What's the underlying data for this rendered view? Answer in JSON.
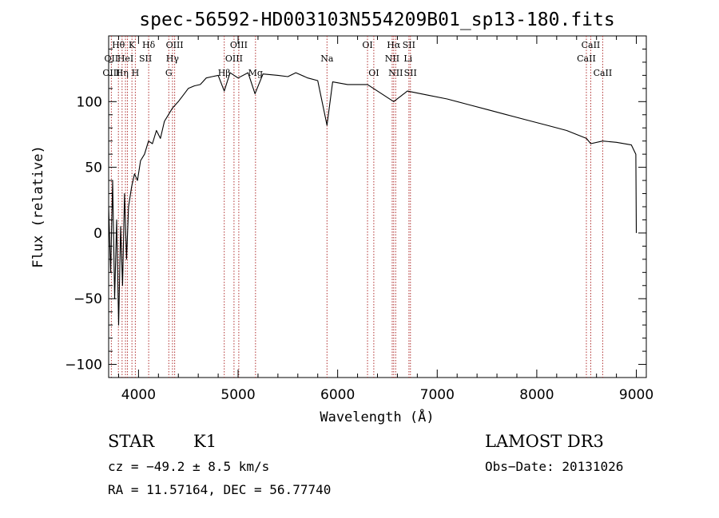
{
  "chart_data": {
    "type": "line",
    "title": "spec-56592-HD003103N554209B01_sp13-180.fits",
    "xlabel": "Wavelength (Å)",
    "ylabel": "Flux (relative)",
    "xlim": [
      3700,
      9100
    ],
    "ylim": [
      -110,
      150
    ],
    "xticks": [
      4000,
      5000,
      6000,
      7000,
      8000,
      9000
    ],
    "xtick_labels": [
      "4000",
      "5000",
      "6000",
      "7000",
      "8000",
      "9000"
    ],
    "yticks": [
      -100,
      -50,
      0,
      50,
      100
    ],
    "ytick_labels": [
      "−100",
      "−50",
      "0",
      "50",
      "100"
    ],
    "series": [
      {
        "name": "spectrum",
        "x": [
          3700,
          3720,
          3740,
          3760,
          3780,
          3800,
          3820,
          3840,
          3860,
          3880,
          3900,
          3930,
          3960,
          3990,
          4020,
          4060,
          4100,
          4140,
          4180,
          4220,
          4260,
          4300,
          4340,
          4400,
          4450,
          4500,
          4560,
          4620,
          4680,
          4740,
          4800,
          4861,
          4920,
          5000,
          5100,
          5170,
          5250,
          5400,
          5500,
          5580,
          5700,
          5800,
          5893,
          5950,
          6100,
          6300,
          6400,
          6563,
          6700,
          6900,
          7100,
          7300,
          7500,
          7700,
          7900,
          8100,
          8300,
          8498,
          8542,
          8662,
          8800,
          8950,
          8995,
          9000
        ],
        "y": [
          20,
          -30,
          40,
          -50,
          10,
          -70,
          5,
          -40,
          30,
          -20,
          20,
          35,
          45,
          40,
          55,
          60,
          70,
          68,
          78,
          72,
          85,
          90,
          95,
          100,
          105,
          110,
          112,
          113,
          118,
          119,
          120,
          108,
          122,
          118,
          122,
          106,
          121,
          120,
          119,
          122,
          118,
          116,
          82,
          115,
          113,
          113,
          108,
          100,
          108,
          105,
          102,
          98,
          94,
          90,
          86,
          82,
          78,
          72,
          68,
          70,
          69,
          67,
          60,
          0
        ]
      }
    ],
    "line_markers": {
      "wavelengths": [
        3727,
        3798,
        3835,
        3869,
        3889,
        3934,
        3968,
        4102,
        4304,
        4341,
        4363,
        4861,
        4959,
        5007,
        5175,
        5893,
        6300,
        6363,
        6548,
        6563,
        6583,
        6716,
        6731,
        8498,
        8542,
        8662
      ],
      "labels": [
        {
          "text": "OII",
          "x": 3727,
          "row": 1
        },
        {
          "text": "OIII",
          "x": 3727,
          "row": 2
        },
        {
          "text": "Hθ",
          "x": 3798,
          "row": 0
        },
        {
          "text": "HeI",
          "x": 3869,
          "row": 1
        },
        {
          "text": "Hη",
          "x": 3835,
          "row": 2
        },
        {
          "text": "K",
          "x": 3934,
          "row": 0
        },
        {
          "text": "H",
          "x": 3968,
          "row": 2
        },
        {
          "text": "SII",
          "x": 4070,
          "row": 1
        },
        {
          "text": "Hδ",
          "x": 4102,
          "row": 0
        },
        {
          "text": "OIII",
          "x": 4363,
          "row": 0
        },
        {
          "text": "Hγ",
          "x": 4341,
          "row": 1
        },
        {
          "text": "G",
          "x": 4304,
          "row": 2
        },
        {
          "text": "OIII",
          "x": 5007,
          "row": 0
        },
        {
          "text": "OIII",
          "x": 4959,
          "row": 1
        },
        {
          "text": "Hβ",
          "x": 4861,
          "row": 2
        },
        {
          "text": "Mg",
          "x": 5175,
          "row": 2
        },
        {
          "text": "Na",
          "x": 5893,
          "row": 1
        },
        {
          "text": "OI",
          "x": 6300,
          "row": 0
        },
        {
          "text": "OI",
          "x": 6363,
          "row": 2
        },
        {
          "text": "Hα",
          "x": 6563,
          "row": 0
        },
        {
          "text": "SII",
          "x": 6716,
          "row": 0
        },
        {
          "text": "NII",
          "x": 6548,
          "row": 1
        },
        {
          "text": "Li",
          "x": 6707,
          "row": 1
        },
        {
          "text": "NII",
          "x": 6583,
          "row": 2
        },
        {
          "text": "SII",
          "x": 6731,
          "row": 2
        },
        {
          "text": "CaII",
          "x": 8542,
          "row": 0
        },
        {
          "text": "CaII",
          "x": 8498,
          "row": 1
        },
        {
          "text": "CaII",
          "x": 8662,
          "row": 2
        }
      ]
    }
  },
  "info": {
    "class_label": "STAR",
    "subclass": "K1",
    "survey": "LAMOST DR3",
    "cz": "cz = −49.2 ± 8.5 km/s",
    "obs_date": "Obs−Date: 20131026",
    "radec": "RA =  11.57164, DEC =  56.77740"
  },
  "colors": {
    "spectrum": "#000000",
    "marker": "#b03030",
    "axis": "#000000"
  }
}
